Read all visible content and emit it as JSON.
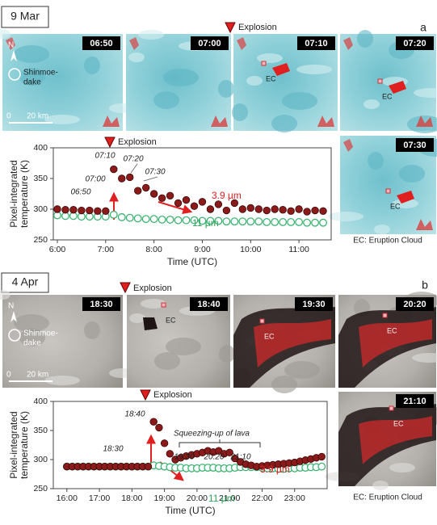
{
  "panels": [
    {
      "date": "9 Mar",
      "letter": "a",
      "explosion": "Explosion",
      "north": "N",
      "volcano": [
        "Shinmoe-",
        "dake"
      ],
      "scale": [
        "0",
        "20 km"
      ],
      "note": "EC: Eruption Cloud",
      "frames": [
        {
          "time": "06:50"
        },
        {
          "time": "07:00"
        },
        {
          "time": "07:10",
          "label": "EC"
        },
        {
          "time": "07:20",
          "label": "EC"
        },
        {
          "time": "07:30",
          "label": "EC"
        }
      ]
    },
    {
      "date": "4 Apr",
      "letter": "b",
      "explosion": "Explosion",
      "north": "N",
      "volcano": [
        "Shinmoe-",
        "dake"
      ],
      "scale": [
        "0",
        "20 km"
      ],
      "note": "EC: Eruption Cloud",
      "frames": [
        {
          "time": "18:30"
        },
        {
          "time": "18:40",
          "label": "EC"
        },
        {
          "time": "19:30",
          "label": "EC"
        },
        {
          "time": "20:20",
          "label": "EC"
        },
        {
          "time": "21:10",
          "label": "EC"
        }
      ]
    }
  ],
  "chart_data": [
    {
      "type": "scatter",
      "explosion_label": "Explosion",
      "xlabel": "Time (UTC)",
      "ylabel": [
        "Pixel-integrated",
        "temperature (K)"
      ],
      "annotations": [
        "06:50",
        "07:00",
        "07:10",
        "07:20",
        "07:30"
      ],
      "x": [
        360,
        370,
        380,
        390,
        400,
        410,
        420,
        430,
        440,
        450,
        460,
        470,
        480,
        490,
        500,
        510,
        520,
        530,
        540,
        550,
        560,
        570,
        580,
        590,
        600,
        610,
        620,
        630,
        640,
        650,
        660,
        670,
        680,
        690
      ],
      "series": [
        {
          "name": "3.9 µm",
          "color": "#8b1a1a",
          "label_color": "#e02020",
          "marker": "filled",
          "values": [
            300,
            299,
            299,
            298,
            298,
            297,
            297,
            365,
            350,
            352,
            330,
            335,
            325,
            318,
            322,
            310,
            315,
            305,
            312,
            300,
            308,
            298,
            310,
            300,
            302,
            300,
            298,
            300,
            299,
            297,
            300,
            296,
            298,
            297
          ]
        },
        {
          "name": "11 µm",
          "color": "#3cb371",
          "label_color": "#2ea35a",
          "marker": "open",
          "values": [
            290,
            289,
            289,
            288,
            288,
            288,
            288,
            291,
            287,
            286,
            285,
            284,
            284,
            283,
            283,
            282,
            282,
            282,
            281,
            281,
            281,
            280,
            280,
            280,
            280,
            280,
            279,
            279,
            279,
            279,
            279,
            278,
            278,
            278
          ]
        }
      ],
      "xlim": [
        355,
        700
      ],
      "xticks": [
        {
          "value": 360,
          "label": "6:00"
        },
        {
          "value": 420,
          "label": "7:00"
        },
        {
          "value": 480,
          "label": "8:00"
        },
        {
          "value": 540,
          "label": "9:00"
        },
        {
          "value": 600,
          "label": "10:00"
        },
        {
          "value": 660,
          "label": "11:00"
        }
      ],
      "ylim": [
        250,
        400
      ],
      "yticks": [
        250,
        300,
        350,
        400
      ]
    },
    {
      "type": "scatter",
      "explosion_label": "Explosion",
      "xlabel": "Time (UTC)",
      "ylabel": [
        "Pixel-integrated",
        "temperature (K)"
      ],
      "annotations": [
        "18:30",
        "18:40",
        "19:30",
        "20:20",
        "21:10",
        "Squeezing-up of lava"
      ],
      "x": [
        960,
        970,
        980,
        990,
        1000,
        1010,
        1020,
        1030,
        1040,
        1050,
        1060,
        1070,
        1080,
        1090,
        1100,
        1110,
        1120,
        1130,
        1140,
        1150,
        1160,
        1170,
        1180,
        1190,
        1200,
        1210,
        1220,
        1230,
        1240,
        1250,
        1260,
        1270,
        1280,
        1290,
        1300,
        1310,
        1320,
        1330,
        1340,
        1350,
        1360,
        1370,
        1380,
        1390,
        1400,
        1410,
        1420,
        1430
      ],
      "series": [
        {
          "name": "3.9 µm",
          "color": "#8b1a1a",
          "label_color": "#e02020",
          "marker": "filled",
          "values": [
            288,
            288,
            288,
            288,
            288,
            288,
            288,
            288,
            288,
            288,
            288,
            288,
            288,
            288,
            288,
            288,
            365,
            355,
            328,
            310,
            300,
            303,
            306,
            308,
            310,
            312,
            315,
            313,
            315,
            310,
            312,
            302,
            296,
            292,
            290,
            288,
            289,
            290,
            291,
            292,
            293,
            294,
            295,
            297,
            299,
            301,
            303,
            305
          ]
        },
        {
          "name": "11 µm",
          "color": "#3cb371",
          "label_color": "#2ea35a",
          "marker": "open",
          "values": [
            288,
            288,
            288,
            288,
            288,
            288,
            288,
            288,
            288,
            288,
            288,
            288,
            288,
            288,
            288,
            288,
            290,
            289,
            288,
            287,
            286,
            286,
            285,
            285,
            285,
            286,
            286,
            286,
            285,
            285,
            285,
            286,
            287,
            287,
            287,
            287,
            286,
            285,
            285,
            284,
            284,
            285,
            285,
            286,
            286,
            287,
            287,
            288
          ]
        }
      ],
      "xlim": [
        935,
        1440
      ],
      "xticks": [
        {
          "value": 960,
          "label": "16:00"
        },
        {
          "value": 1020,
          "label": "17:00"
        },
        {
          "value": 1080,
          "label": "18:00"
        },
        {
          "value": 1140,
          "label": "19:00"
        },
        {
          "value": 1200,
          "label": "20:00"
        },
        {
          "value": 1260,
          "label": "21:00"
        },
        {
          "value": 1320,
          "label": "22:00"
        },
        {
          "value": 1380,
          "label": "23:00"
        }
      ],
      "ylim": [
        250,
        400
      ],
      "yticks": [
        250,
        300,
        350,
        400
      ]
    }
  ]
}
